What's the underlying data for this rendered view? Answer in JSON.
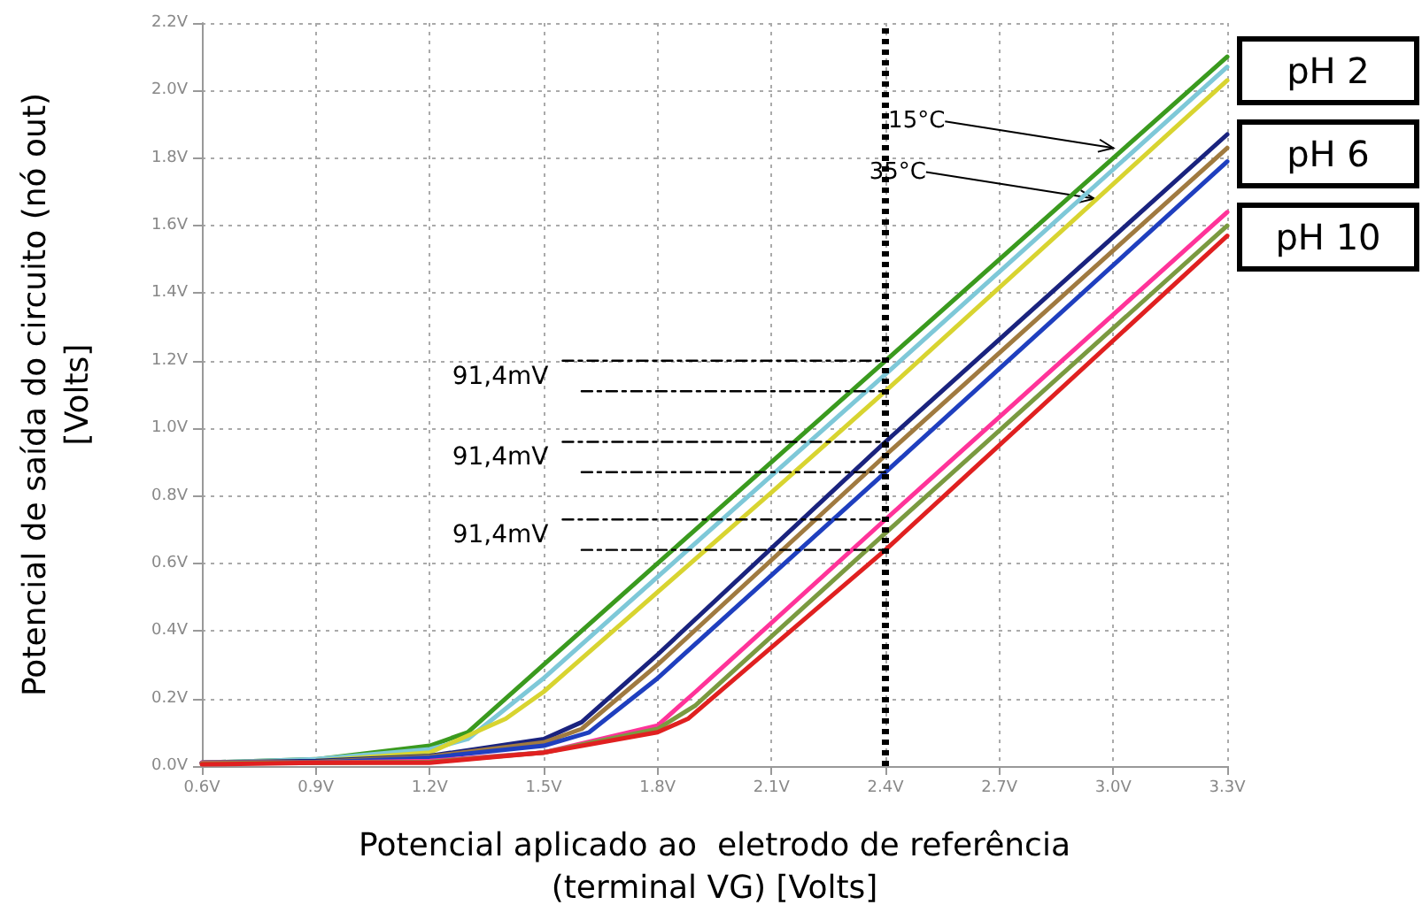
{
  "chart_data": {
    "type": "line",
    "xlabel": "Potencial aplicado ao  eletrodo de referência\n(terminal VG) [Volts]",
    "ylabel": "Potencial de saída do circuito (nó out)\n[Volts]",
    "xlim": [
      0.6,
      3.3
    ],
    "xticks": [
      {
        "value": 0.6,
        "label": "0.6V"
      },
      {
        "value": 0.9,
        "label": "0.9V"
      },
      {
        "value": 1.2,
        "label": "1.2V"
      },
      {
        "value": 1.5,
        "label": "1.5V"
      },
      {
        "value": 1.8,
        "label": "1.8V"
      },
      {
        "value": 2.1,
        "label": "2.1V"
      },
      {
        "value": 2.4,
        "label": "2.4V"
      },
      {
        "value": 2.7,
        "label": "2.7V"
      },
      {
        "value": 3.0,
        "label": "3.0V"
      },
      {
        "value": 3.3,
        "label": "3.3V"
      }
    ],
    "ylim": [
      0,
      2.2
    ],
    "yticks": [
      {
        "value": 0,
        "label": "0.0V"
      },
      {
        "value": 0.2,
        "label": "0.2V"
      },
      {
        "value": 0.4,
        "label": "0.4V"
      },
      {
        "value": 0.6,
        "label": "0.6V"
      },
      {
        "value": 0.8,
        "label": "0.8V"
      },
      {
        "value": 1.0,
        "label": "1.0V"
      },
      {
        "value": 1.2,
        "label": "1.2V"
      },
      {
        "value": 1.4,
        "label": "1.4V"
      },
      {
        "value": 1.6,
        "label": "1.6V"
      },
      {
        "value": 1.8,
        "label": "1.8V"
      },
      {
        "value": 2.0,
        "label": "2.0V"
      },
      {
        "value": 2.2,
        "label": "2.2V"
      }
    ],
    "grid": true,
    "marker": "none",
    "line_style": "solid",
    "series": [
      {
        "color": "#3a9a1e",
        "x": [
          0.6,
          0.9,
          1.2,
          1.3,
          1.5,
          2.1,
          2.4,
          3.3
        ],
        "values": [
          0.01,
          0.02,
          0.06,
          0.1,
          0.3,
          0.9,
          1.2,
          2.1
        ]
      },
      {
        "color": "#7ec8d8",
        "x": [
          0.6,
          0.9,
          1.2,
          1.3,
          1.5,
          2.1,
          2.4,
          3.3
        ],
        "values": [
          0.01,
          0.02,
          0.05,
          0.08,
          0.26,
          0.86,
          1.16,
          2.07
        ]
      },
      {
        "color": "#d8d430",
        "x": [
          0.6,
          0.9,
          1.2,
          1.4,
          1.5,
          2.1,
          2.4,
          3.3
        ],
        "values": [
          0.01,
          0.015,
          0.04,
          0.14,
          0.22,
          0.81,
          1.11,
          2.03
        ]
      },
      {
        "color": "#1a237e",
        "x": [
          0.6,
          0.9,
          1.2,
          1.5,
          1.6,
          1.8,
          2.4,
          3.3
        ],
        "values": [
          0.01,
          0.015,
          0.03,
          0.08,
          0.13,
          0.33,
          0.96,
          1.87
        ]
      },
      {
        "color": "#a07a40",
        "x": [
          0.6,
          0.9,
          1.2,
          1.5,
          1.6,
          1.8,
          2.4,
          3.3
        ],
        "values": [
          0.01,
          0.012,
          0.028,
          0.07,
          0.11,
          0.3,
          0.92,
          1.83
        ]
      },
      {
        "color": "#1f3fbf",
        "x": [
          0.6,
          0.9,
          1.2,
          1.5,
          1.62,
          1.8,
          2.4,
          3.3
        ],
        "values": [
          0.01,
          0.01,
          0.025,
          0.06,
          0.1,
          0.26,
          0.87,
          1.79
        ]
      },
      {
        "color": "#ff3399",
        "x": [
          0.6,
          0.9,
          1.2,
          1.5,
          1.8,
          1.9,
          2.4,
          3.3
        ],
        "values": [
          0.01,
          0.01,
          0.015,
          0.04,
          0.12,
          0.22,
          0.73,
          1.64
        ]
      },
      {
        "color": "#7a9a40",
        "x": [
          0.6,
          0.9,
          1.2,
          1.5,
          1.8,
          1.9,
          2.4,
          3.3
        ],
        "values": [
          0.008,
          0.01,
          0.012,
          0.04,
          0.11,
          0.18,
          0.69,
          1.6
        ]
      },
      {
        "color": "#e02020",
        "x": [
          0.6,
          0.9,
          1.2,
          1.5,
          1.8,
          1.88,
          2.4,
          3.3
        ],
        "values": [
          0.005,
          0.01,
          0.01,
          0.04,
          0.1,
          0.14,
          0.64,
          1.57
        ]
      },
      {
        "color": "#000000",
        "line_style": "dashed",
        "x": [
          1.55,
          2.4
        ],
        "values": [
          1.2,
          1.2
        ]
      },
      {
        "color": "#000000",
        "line_style": "dashed",
        "x": [
          1.6,
          2.4
        ],
        "values": [
          1.11,
          1.11
        ]
      },
      {
        "color": "#000000",
        "line_style": "dashed",
        "x": [
          1.55,
          2.4
        ],
        "values": [
          0.96,
          0.96
        ]
      },
      {
        "color": "#000000",
        "line_style": "dashed",
        "x": [
          1.6,
          2.4
        ],
        "values": [
          0.87,
          0.87
        ]
      },
      {
        "color": "#000000",
        "line_style": "dashed",
        "x": [
          1.55,
          2.4
        ],
        "values": [
          0.73,
          0.73
        ]
      },
      {
        "color": "#000000",
        "line_style": "dashed",
        "x": [
          1.6,
          2.4
        ],
        "values": [
          0.64,
          0.64
        ]
      }
    ],
    "ref_lines": [
      {
        "axis": "x",
        "value": 2.4,
        "color": "#000000",
        "line_style": "dotted"
      }
    ],
    "annotations": [
      "pH 2",
      "pH 6",
      "pH 10",
      {
        "text": "15°C",
        "x": 3.0,
        "y": 1.83
      },
      {
        "text": "35°C",
        "x": 2.95,
        "y": 1.68
      },
      {
        "text": "91,4mV",
        "x": 1.55,
        "y": 1.2
      },
      {
        "text": "91,4mV",
        "x": 1.55,
        "y": 0.96
      },
      {
        "text": "91,4mV",
        "x": 1.55,
        "y": 0.73
      }
    ]
  }
}
